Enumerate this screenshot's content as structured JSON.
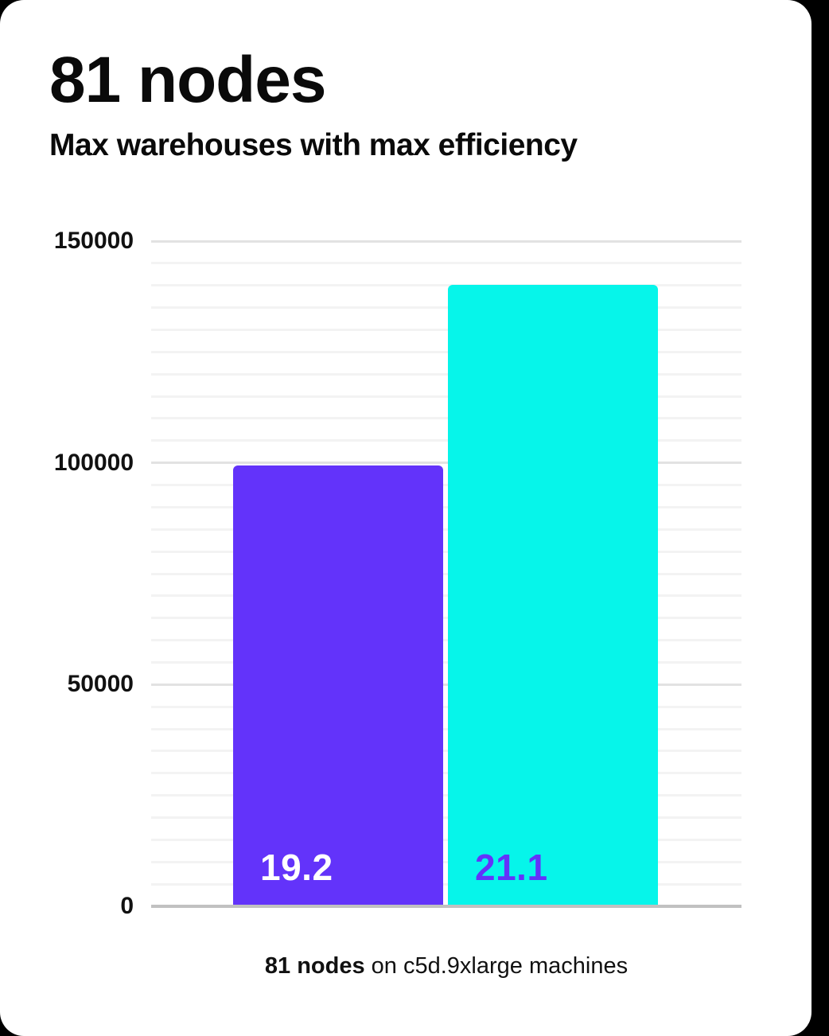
{
  "header": {
    "title": "81 nodes",
    "subtitle": "Max warehouses with max efficiency"
  },
  "chart_data": {
    "type": "bar",
    "title": "81 nodes",
    "subtitle": "Max warehouses with max efficiency",
    "bars": [
      {
        "label": "19.2",
        "value": 99400,
        "color": "#6333fa",
        "label_color": "#ffffff"
      },
      {
        "label": "21.1",
        "value": 140100,
        "color": "#06f5ea",
        "label_color": "#6333fa"
      }
    ],
    "xlabel": "",
    "ylabel": "",
    "ylim": [
      0,
      150000
    ],
    "yticks": [
      0,
      50000,
      100000,
      150000
    ],
    "ytick_labels": [
      "0",
      "50000",
      "100000",
      "150000"
    ],
    "minor_gridline_step": 5000,
    "grid": "horizontal",
    "legend": "none",
    "caption": "81 nodes on c5d.9xlarge machines"
  },
  "footer": {
    "caption_bold": "81 nodes",
    "caption_rest": " on c5d.9xlarge machines"
  },
  "colors": {
    "bar_purple": "#6333fa",
    "bar_cyan": "#06f5ea",
    "background": "#000000",
    "card": "#ffffff",
    "minor_gridline": "#f3f3f3",
    "major_gridline": "#e2e2e2",
    "axis_line": "#c1c1c1",
    "text": "#0a0a0a"
  }
}
